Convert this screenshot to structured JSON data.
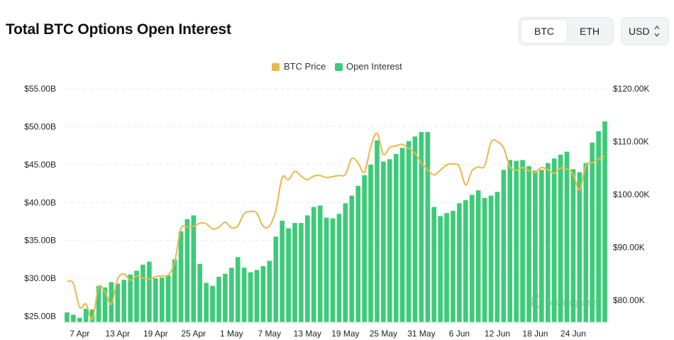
{
  "header": {
    "title": "Total BTC Options Open Interest"
  },
  "toggle": {
    "btc_label": "BTC",
    "eth_label": "ETH",
    "active": "BTC"
  },
  "currency": {
    "label": "USD"
  },
  "colors": {
    "price": "#e8b84a",
    "open_interest": "#3ccb78",
    "grid": "#e6e6e6",
    "watermark": "#c9c9c9"
  },
  "watermark": "coinglass",
  "chart_data": {
    "type": "bar",
    "legend": [
      "BTC Price",
      "Open Interest"
    ],
    "legend_position": "top-center",
    "grid": true,
    "x_ticks": [
      "7 Apr",
      "13 Apr",
      "19 Apr",
      "25 Apr",
      "1 May",
      "7 May",
      "13 May",
      "19 May",
      "25 May",
      "31 May",
      "6 Jun",
      "12 Jun",
      "18 Jun",
      "24 Jun"
    ],
    "y_left": {
      "ticks": [
        "$25.00B",
        "$30.00B",
        "$35.00B",
        "$40.00B",
        "$45.00B",
        "$50.00B",
        "$55.00B"
      ],
      "range": [
        24.3,
        55
      ]
    },
    "y_right": {
      "ticks": [
        "$80.00K",
        "$90.00K",
        "$100.00K",
        "$110.00K",
        "$120.00K"
      ],
      "range": [
        76,
        120
      ]
    },
    "series": [
      {
        "name": "Open Interest",
        "unit": "USD billions",
        "values": [
          25.5,
          25.2,
          24.8,
          26.0,
          25.9,
          29.0,
          28.8,
          29.5,
          29.3,
          29.8,
          30.5,
          31.0,
          31.8,
          32.2,
          30.0,
          30.1,
          30.4,
          32.5,
          36.2,
          37.8,
          38.3,
          31.9,
          29.4,
          29.0,
          30.2,
          30.6,
          31.4,
          32.8,
          31.4,
          30.8,
          31.1,
          31.6,
          32.3,
          35.5,
          37.6,
          36.6,
          37.3,
          37.3,
          38.3,
          39.4,
          39.6,
          38.0,
          37.9,
          38.5,
          39.9,
          40.9,
          42.2,
          43.6,
          45.0,
          48.2,
          45.4,
          45.7,
          46.4,
          47.2,
          48.1,
          48.7,
          49.3,
          49.3,
          39.4,
          38.2,
          38.6,
          38.9,
          39.9,
          40.3,
          41.0,
          41.6,
          40.6,
          40.9,
          41.4,
          44.3,
          45.6,
          45.5,
          45.6,
          44.8,
          44.2,
          44.3,
          45.2,
          45.8,
          46.3,
          46.7,
          44.4,
          44.0,
          45.2,
          47.9,
          49.4,
          50.7
        ]
      },
      {
        "name": "BTC Price",
        "unit": "USD thousands",
        "values": [
          83.6,
          83.2,
          78.7,
          79.3,
          76.4,
          82.5,
          81.6,
          79.3,
          84.0,
          85.0,
          83.8,
          84.6,
          84.2,
          84.0,
          84.5,
          84.6,
          84.8,
          87.2,
          93.5,
          93.9,
          94.0,
          94.6,
          94.5,
          93.5,
          93.8,
          94.8,
          93.7,
          94.1,
          96.4,
          96.8,
          96.5,
          94.0,
          94.1,
          97.0,
          103.2,
          102.8,
          104.4,
          103.5,
          102.8,
          103.5,
          103.6,
          103.2,
          103.4,
          103.6,
          103.8,
          106.8,
          106.0,
          104.2,
          109.0,
          111.6,
          107.6,
          108.9,
          109.2,
          109.5,
          108.7,
          107.8,
          106.0,
          104.7,
          103.7,
          104.6,
          105.6,
          105.8,
          105.3,
          101.8,
          104.5,
          105.2,
          105.4,
          109.9,
          110.0,
          108.8,
          105.3,
          104.6,
          105.1,
          104.5,
          104.2,
          105.1,
          104.7,
          104.0,
          105.0,
          104.8,
          103.8,
          100.9,
          105.5,
          106.0,
          106.7,
          107.3
        ]
      }
    ]
  }
}
